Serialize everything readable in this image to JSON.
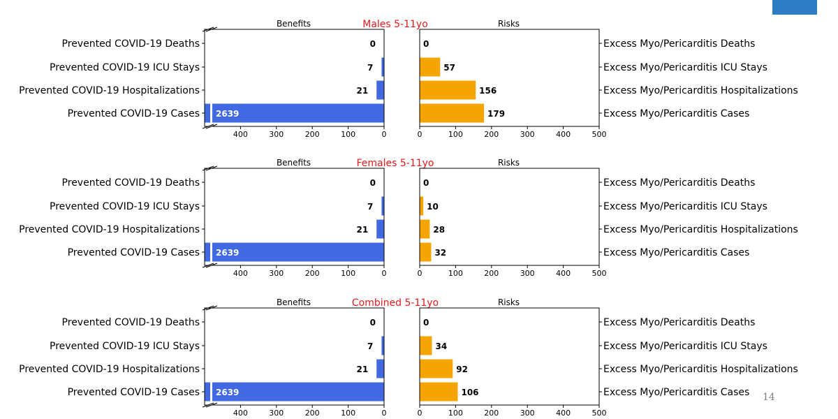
{
  "colors": {
    "benefit_bar": "#4169e1",
    "risk_bar": "#f5a500",
    "title": "#e8191a",
    "corner_block": "#2e7cc4"
  },
  "page_number": "14",
  "chart_data": [
    {
      "type": "bar",
      "orientation": "horizontal",
      "title": "Males 5-11yo",
      "benefits": {
        "title": "Benefits",
        "categories": [
          "Prevented COVID-19 Deaths",
          "Prevented COVID-19 ICU Stays",
          "Prevented COVID-19 Hospitalizations",
          "Prevented COVID-19 Cases"
        ],
        "values": [
          0,
          7,
          21,
          2639
        ],
        "value_labels": [
          "0",
          "7",
          "21",
          "2639"
        ],
        "xlim": [
          500,
          0
        ],
        "axis_break": true,
        "ticks": [
          "400",
          "300",
          "200",
          "100",
          "0"
        ]
      },
      "risks": {
        "title": "Risks",
        "categories": [
          "Excess Myo/Pericarditis Deaths",
          "Excess Myo/Pericarditis ICU Stays",
          "Excess Myo/Pericarditis Hospitalizations",
          "Excess Myo/Pericarditis Cases"
        ],
        "values": [
          0,
          57,
          156,
          179
        ],
        "value_labels": [
          "0",
          "57",
          "156",
          "179"
        ],
        "xlim": [
          0,
          500
        ],
        "ticks": [
          "0",
          "100",
          "200",
          "300",
          "400",
          "500"
        ]
      }
    },
    {
      "type": "bar",
      "orientation": "horizontal",
      "title": "Females 5-11yo",
      "benefits": {
        "title": "Benefits",
        "categories": [
          "Prevented COVID-19 Deaths",
          "Prevented COVID-19 ICU Stays",
          "Prevented COVID-19 Hospitalizations",
          "Prevented COVID-19 Cases"
        ],
        "values": [
          0,
          7,
          21,
          2639
        ],
        "value_labels": [
          "0",
          "7",
          "21",
          "2639"
        ],
        "xlim": [
          500,
          0
        ],
        "axis_break": true,
        "ticks": [
          "400",
          "300",
          "200",
          "100",
          "0"
        ]
      },
      "risks": {
        "title": "Risks",
        "categories": [
          "Excess Myo/Pericarditis Deaths",
          "Excess Myo/Pericarditis ICU Stays",
          "Excess Myo/Pericarditis Hospitalizations",
          "Excess Myo/Pericarditis Cases"
        ],
        "values": [
          0,
          10,
          28,
          32
        ],
        "value_labels": [
          "0",
          "10",
          "28",
          "32"
        ],
        "xlim": [
          0,
          500
        ],
        "ticks": [
          "0",
          "100",
          "200",
          "300",
          "400",
          "500"
        ]
      }
    },
    {
      "type": "bar",
      "orientation": "horizontal",
      "title": "Combined 5-11yo",
      "benefits": {
        "title": "Benefits",
        "categories": [
          "Prevented COVID-19 Deaths",
          "Prevented COVID-19 ICU Stays",
          "Prevented COVID-19 Hospitalizations",
          "Prevented COVID-19 Cases"
        ],
        "values": [
          0,
          7,
          21,
          2639
        ],
        "value_labels": [
          "0",
          "7",
          "21",
          "2639"
        ],
        "xlim": [
          500,
          0
        ],
        "axis_break": true,
        "ticks": [
          "400",
          "300",
          "200",
          "100",
          "0"
        ]
      },
      "risks": {
        "title": "Risks",
        "categories": [
          "Excess Myo/Pericarditis Deaths",
          "Excess Myo/Pericarditis ICU Stays",
          "Excess Myo/Pericarditis Hospitalizations",
          "Excess Myo/Pericarditis Cases"
        ],
        "values": [
          0,
          34,
          92,
          106
        ],
        "value_labels": [
          "0",
          "34",
          "92",
          "106"
        ],
        "xlim": [
          0,
          500
        ],
        "ticks": [
          "0",
          "100",
          "200",
          "300",
          "400",
          "500"
        ]
      }
    }
  ]
}
